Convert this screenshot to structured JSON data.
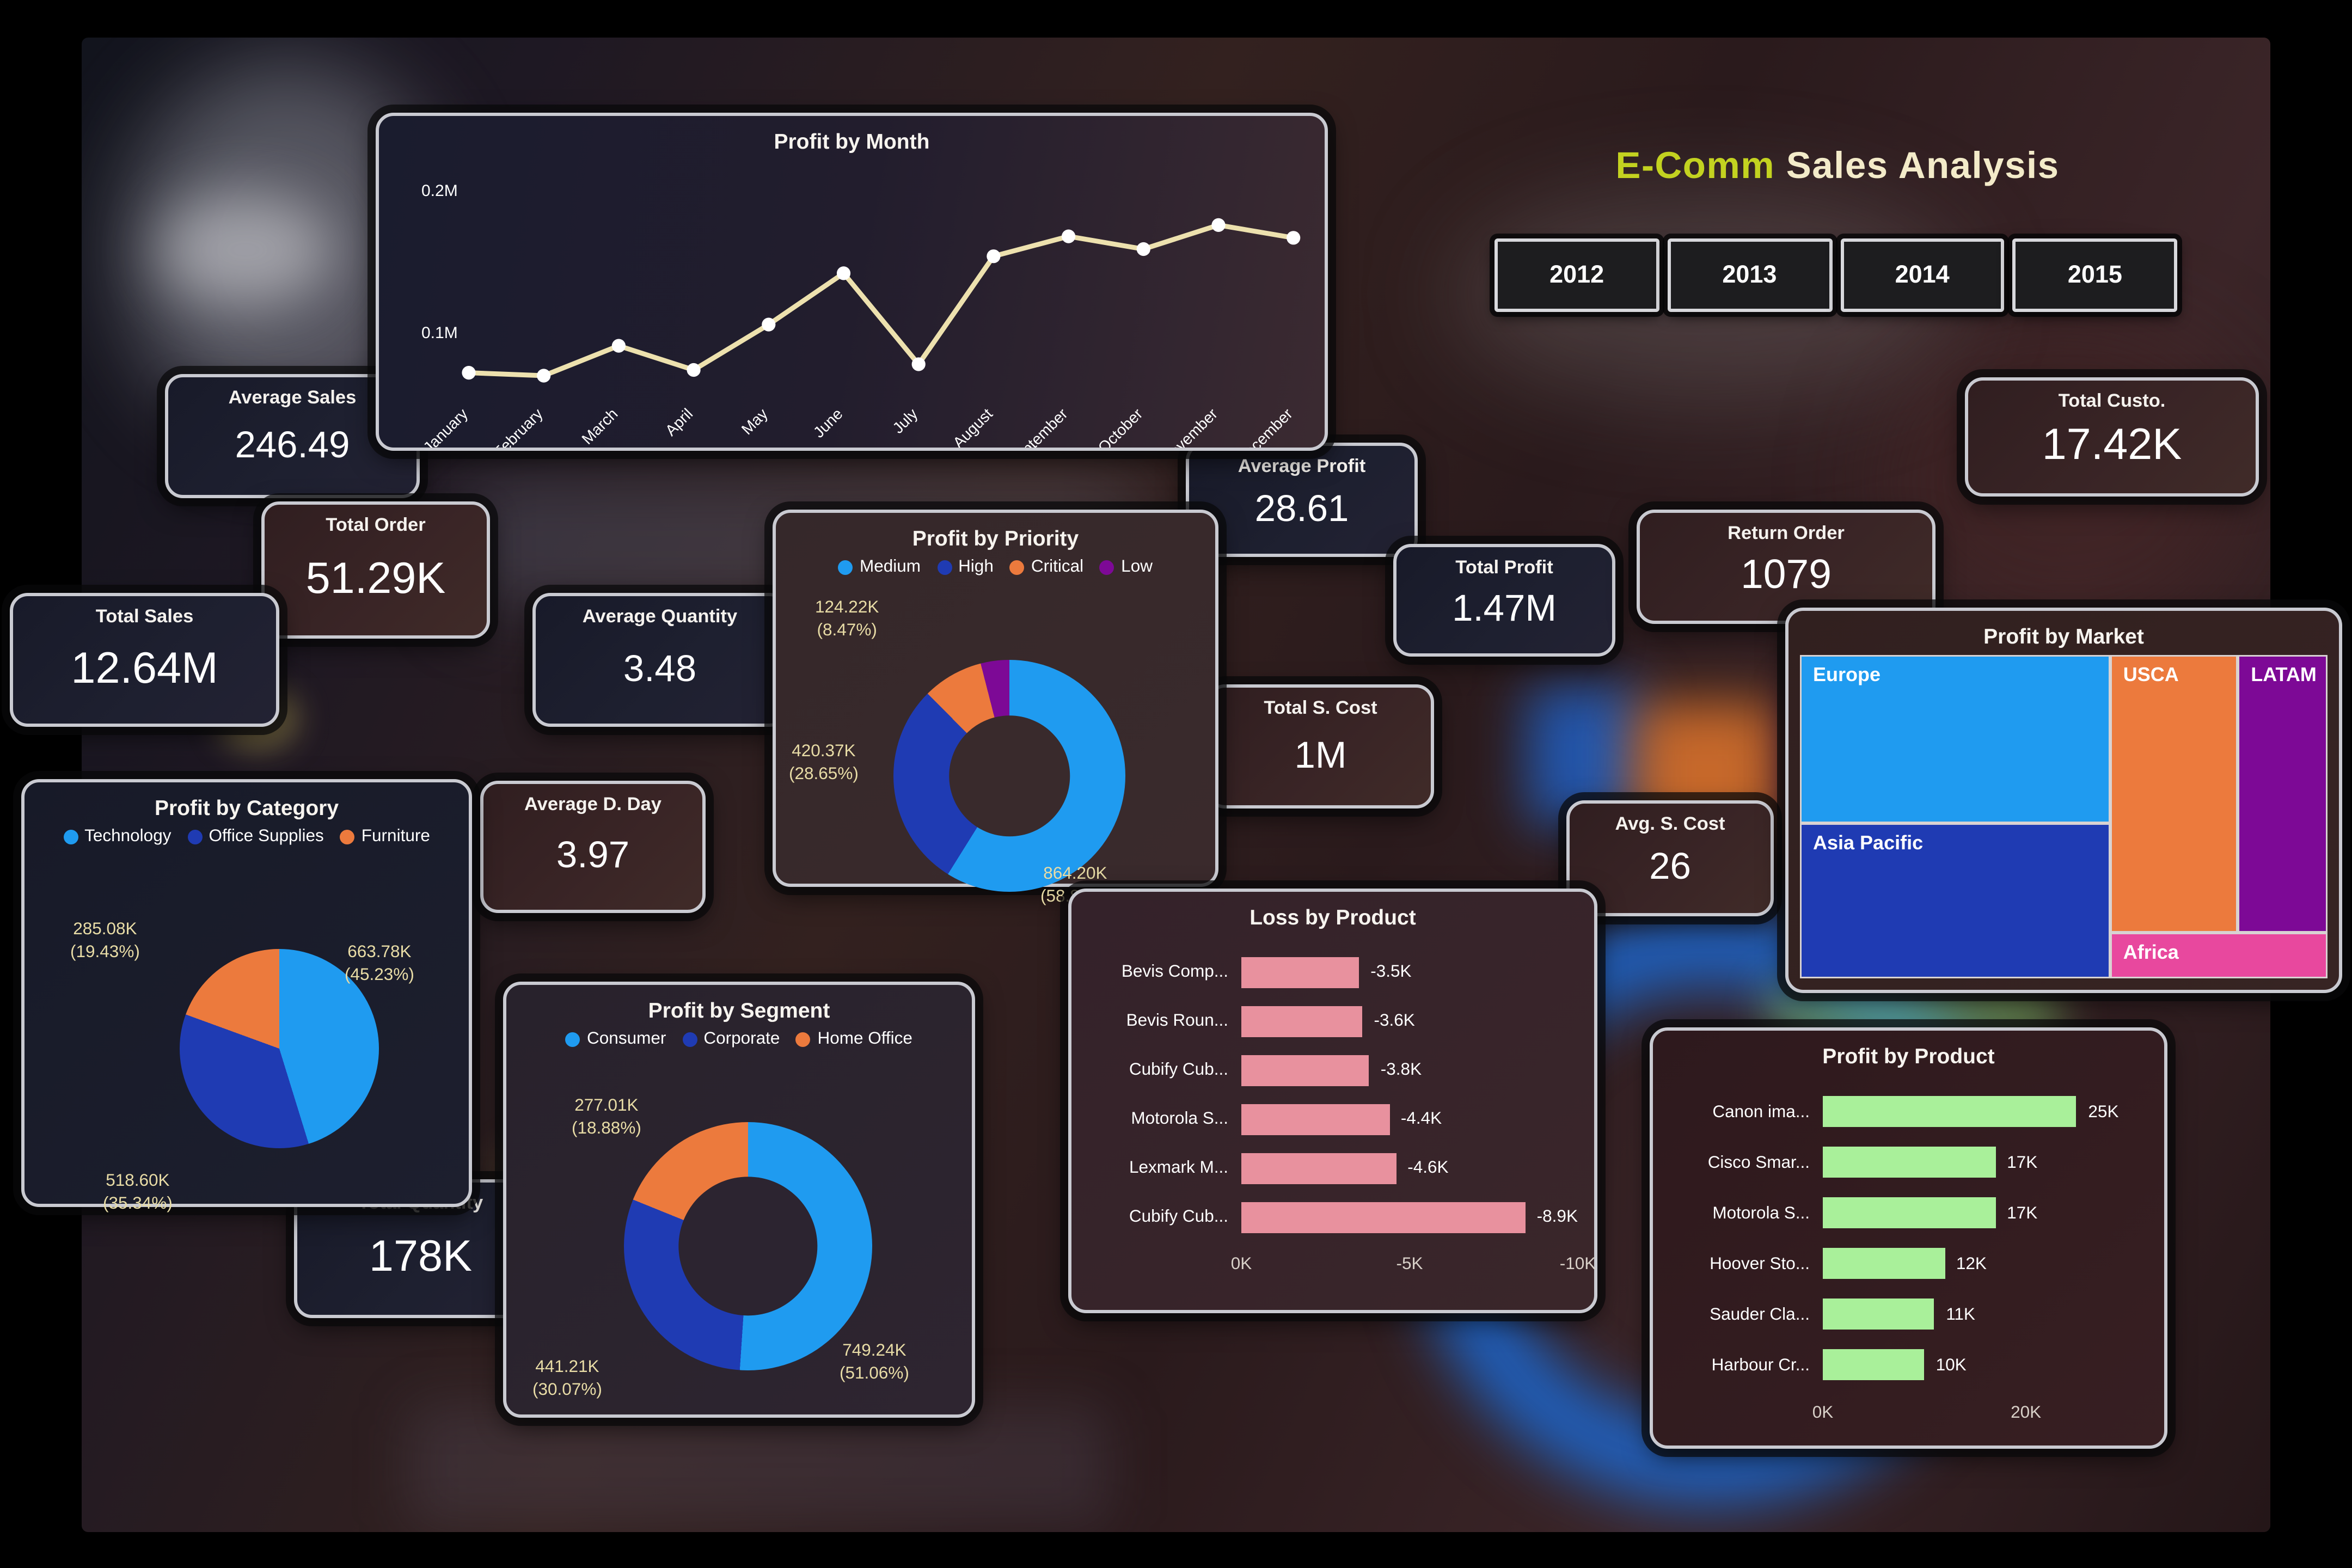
{
  "page": {
    "title_highlight": "E-Comm",
    "title_rest": " Sales Analysis"
  },
  "year_buttons": [
    "2012",
    "2013",
    "2014",
    "2015"
  ],
  "kpis": [
    {
      "id": "average-sales",
      "label": "Average Sales",
      "value": "246.49",
      "theme": "navy"
    },
    {
      "id": "total-order",
      "label": "Total Order",
      "value": "51.29K",
      "theme": "maroon"
    },
    {
      "id": "total-sales",
      "label": "Total Sales",
      "value": "12.64M",
      "theme": "navy"
    },
    {
      "id": "average-quantity",
      "label": "Average Quantity",
      "value": "3.48",
      "theme": "navy"
    },
    {
      "id": "average-profit",
      "label": "Average Profit",
      "value": "28.61",
      "theme": "navy"
    },
    {
      "id": "total-profit",
      "label": "Total Profit",
      "value": "1.47M",
      "theme": "navy"
    },
    {
      "id": "total-s-cost",
      "label": "Total S. Cost",
      "value": "1M",
      "theme": "maroon"
    },
    {
      "id": "return-order",
      "label": "Return Order",
      "value": "1079",
      "theme": "maroon"
    },
    {
      "id": "total-custo",
      "label": "Total Custo.",
      "value": "17.42K",
      "theme": "maroon"
    },
    {
      "id": "avg-s-cost",
      "label": "Avg. S. Cost",
      "value": "26",
      "theme": "maroon"
    },
    {
      "id": "average-d-day",
      "label": "Average D. Day",
      "value": "3.97",
      "theme": "maroon"
    },
    {
      "id": "total-quantity",
      "label": "Total Quantity",
      "value": "178K",
      "theme": "navy"
    }
  ],
  "colors": {
    "light_blue": "#1f9bf0",
    "dark_blue": "#1f3bb3",
    "orange": "#ec7a3d",
    "purple": "#7d0996",
    "pink": "#e8489e",
    "salmon": "#e8919e",
    "green": "#a9f09a",
    "line": "#ede1ae",
    "title_highlight": "#c3d220",
    "title_rest": "#f3ebc9"
  },
  "chart_data": [
    {
      "id": "profit-by-month",
      "type": "line",
      "title": "Profit by Month",
      "x": [
        "January",
        "February",
        "March",
        "April",
        "May",
        "June",
        "July",
        "August",
        "September",
        "October",
        "November",
        "December"
      ],
      "values_M": [
        0.071,
        0.069,
        0.09,
        0.073,
        0.105,
        0.141,
        0.077,
        0.153,
        0.167,
        0.158,
        0.175,
        0.166
      ],
      "yticks": [
        {
          "label": "0.2M",
          "value": 0.2
        },
        {
          "label": "0.1M",
          "value": 0.1
        }
      ],
      "ylim": [
        0.05,
        0.22
      ],
      "grid": false,
      "line_color": "#ede1ae",
      "marker_color": "#ffffff"
    },
    {
      "id": "profit-by-priority",
      "type": "donut",
      "title": "Profit by Priority",
      "legend_position": "top",
      "legend": [
        "Medium",
        "High",
        "Critical",
        "Low"
      ],
      "colors": [
        "#1f9bf0",
        "#1f3bb3",
        "#ec7a3d",
        "#7d0996"
      ],
      "slices": [
        {
          "name": "Medium",
          "value_label": "864.20K",
          "pct": 58.89,
          "label": "864.20K\n(58.89%)"
        },
        {
          "name": "High",
          "value_label": "420.37K",
          "pct": 28.65,
          "label": "420.37K\n(28.65%)"
        },
        {
          "name": "Critical",
          "value_label": "124.22K",
          "pct": 8.47,
          "label": "124.22K\n(8.47%)"
        },
        {
          "name": "Low",
          "value_label": "",
          "pct": 3.99,
          "label": ""
        }
      ]
    },
    {
      "id": "profit-by-category",
      "type": "pie",
      "title": "Profit by Category",
      "legend_position": "top",
      "legend": [
        "Technology",
        "Office Supplies",
        "Furniture"
      ],
      "colors": [
        "#1f9bf0",
        "#1f3bb3",
        "#ec7a3d"
      ],
      "slices": [
        {
          "name": "Technology",
          "value_label": "663.78K",
          "pct": 45.23,
          "label": "663.78K\n(45.23%)"
        },
        {
          "name": "Office Supplies",
          "value_label": "518.60K",
          "pct": 35.34,
          "label": "518.60K\n(35.34%)"
        },
        {
          "name": "Furniture",
          "value_label": "285.08K",
          "pct": 19.43,
          "label": "285.08K\n(19.43%)"
        }
      ]
    },
    {
      "id": "profit-by-segment",
      "type": "donut",
      "title": "Profit by Segment",
      "legend_position": "top",
      "legend": [
        "Consumer",
        "Corporate",
        "Home Office"
      ],
      "colors": [
        "#1f9bf0",
        "#1f3bb3",
        "#ec7a3d"
      ],
      "slices": [
        {
          "name": "Consumer",
          "value_label": "749.24K",
          "pct": 51.06,
          "label": "749.24K\n(51.06%)"
        },
        {
          "name": "Corporate",
          "value_label": "441.21K",
          "pct": 30.07,
          "label": "441.21K\n(30.07%)"
        },
        {
          "name": "Home Office",
          "value_label": "277.01K",
          "pct": 18.88,
          "label": "277.01K\n(18.88%)"
        }
      ]
    },
    {
      "id": "loss-by-product",
      "type": "bar",
      "title": "Loss by Product",
      "orientation": "horizontal",
      "categories": [
        "Bevis Comp...",
        "Bevis Roun...",
        "Cubify Cub...",
        "Motorola S...",
        "Lexmark M...",
        "Cubify Cub..."
      ],
      "values_K": [
        -3.5,
        -3.6,
        -3.8,
        -4.4,
        -4.6,
        -8.9
      ],
      "value_labels": [
        "-3.5K",
        "-3.6K",
        "-3.8K",
        "-4.4K",
        "-4.6K",
        "-8.9K"
      ],
      "xticks": [
        "0K",
        "-5K",
        "-10K"
      ],
      "xlim_K": [
        0,
        -10
      ],
      "bar_color": "#e8919e"
    },
    {
      "id": "profit-by-product",
      "type": "bar",
      "title": "Profit by Product",
      "orientation": "horizontal",
      "categories": [
        "Canon ima...",
        "Cisco Smar...",
        "Motorola S...",
        "Hoover Sto...",
        "Sauder Cla...",
        "Harbour Cr..."
      ],
      "values_K": [
        25,
        17,
        17,
        12,
        11,
        10
      ],
      "value_labels": [
        "25K",
        "17K",
        "17K",
        "12K",
        "11K",
        "10K"
      ],
      "xticks": [
        "0K",
        "20K"
      ],
      "xlim_K": [
        0,
        32
      ],
      "bar_color": "#a9f09a"
    },
    {
      "id": "profit-by-market",
      "type": "treemap",
      "title": "Profit by Market",
      "nodes": [
        {
          "name": "Europe",
          "color": "#1f9bf0",
          "rect_pct": [
            0,
            0,
            58.8,
            52
          ]
        },
        {
          "name": "Asia Pacific",
          "color": "#1f3bb3",
          "rect_pct": [
            0,
            52,
            58.8,
            48
          ]
        },
        {
          "name": "USCA",
          "color": "#ec7a3d",
          "rect_pct": [
            58.8,
            0,
            24.2,
            86
          ]
        },
        {
          "name": "LATAM",
          "color": "#7d0996",
          "rect_pct": [
            83,
            0,
            17,
            86
          ]
        },
        {
          "name": "Africa",
          "color": "#e8489e",
          "rect_pct": [
            58.8,
            86,
            41.2,
            14
          ]
        }
      ]
    }
  ]
}
